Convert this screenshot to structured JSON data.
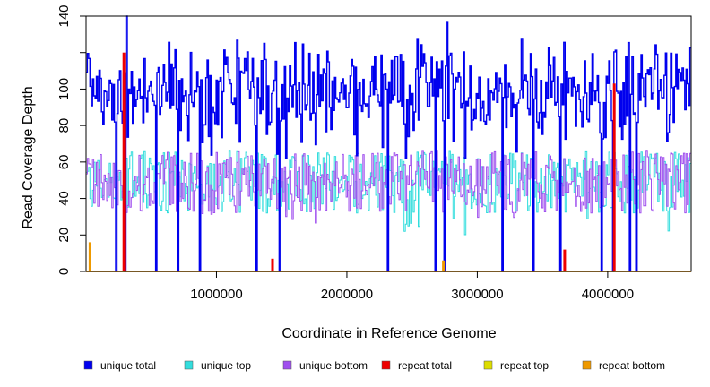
{
  "chart_data": {
    "type": "line",
    "title": "",
    "xlabel": "Coordinate in Reference Genome",
    "ylabel": "Read Coverage Depth",
    "xlim": [
      0,
      4640000
    ],
    "ylim": [
      0,
      140
    ],
    "x_ticks": [
      {
        "value": 1000000,
        "label": "1000000"
      },
      {
        "value": 2000000,
        "label": "2000000"
      },
      {
        "value": 3000000,
        "label": "3000000"
      },
      {
        "value": 4000000,
        "label": "4000000"
      }
    ],
    "y_ticks": [
      {
        "value": 0,
        "label": "0"
      },
      {
        "value": 20,
        "label": "20"
      },
      {
        "value": 40,
        "label": "40"
      },
      {
        "value": 60,
        "label": "60"
      },
      {
        "value": 80,
        "label": "80"
      },
      {
        "value": 100,
        "label": "100"
      },
      {
        "value": 120,
        "label": ""
      },
      {
        "value": 140,
        "label": "140"
      }
    ],
    "series": [
      {
        "name": "unique total",
        "color": "#0000ee",
        "approx_mean": 95,
        "approx_range": [
          62,
          140
        ],
        "dropouts_to_zero": true
      },
      {
        "name": "unique top",
        "color": "#33dddd",
        "approx_mean": 47,
        "approx_range": [
          18,
          70
        ]
      },
      {
        "name": "unique bottom",
        "color": "#a050ee",
        "approx_mean": 47,
        "approx_range": [
          25,
          70
        ]
      },
      {
        "name": "repeat total",
        "color": "#ee0000",
        "approx_mean": 0,
        "peaks": [
          {
            "x": 290000,
            "y": 120
          },
          {
            "x": 4050000,
            "y": 103
          },
          {
            "x": 1430000,
            "y": 7
          },
          {
            "x": 3670000,
            "y": 12
          }
        ]
      },
      {
        "name": "repeat top",
        "color": "#dddd00",
        "approx_mean": 0
      },
      {
        "name": "repeat bottom",
        "color": "#ee9900",
        "approx_mean": 0,
        "peaks": [
          {
            "x": 30000,
            "y": 16
          },
          {
            "x": 2740000,
            "y": 6
          }
        ]
      }
    ],
    "coverage_dropouts": [
      230000,
      300000,
      530000,
      700000,
      870000,
      1300000,
      1480000,
      2310000,
      2680000,
      2740000,
      3190000,
      3430000,
      3630000,
      3950000,
      4040000,
      4170000,
      4220000
    ]
  }
}
